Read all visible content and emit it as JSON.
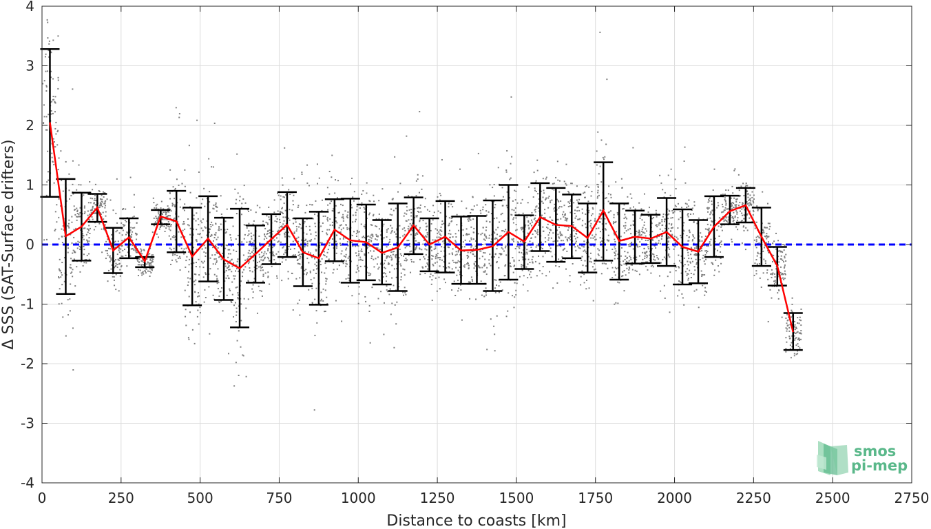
{
  "chart_data": {
    "type": "scatter",
    "xlabel": "Distance to coasts [km]",
    "ylabel": "Δ SSS (SAT-Surface drifters)",
    "xlim": [
      0,
      2750
    ],
    "ylim": [
      -4,
      4
    ],
    "x_ticks": [
      "0",
      "250",
      "500",
      "750",
      "1000",
      "1250",
      "1500",
      "1750",
      "2000",
      "2250",
      "2500",
      "2750"
    ],
    "y_ticks": [
      "4",
      "3",
      "2",
      "1",
      "0",
      "-1",
      "-2",
      "-3",
      "-4"
    ],
    "grid": true,
    "reference_line": {
      "y": 0,
      "style": "dashed",
      "color": "#0000ff"
    },
    "series": [
      {
        "style": "line-with-errorbars",
        "color": "#ff0000",
        "x": [
          25,
          75,
          125,
          175,
          225,
          275,
          325,
          375,
          425,
          475,
          525,
          575,
          625,
          675,
          725,
          775,
          825,
          875,
          925,
          975,
          1025,
          1075,
          1125,
          1175,
          1225,
          1275,
          1325,
          1375,
          1425,
          1475,
          1525,
          1575,
          1625,
          1675,
          1725,
          1775,
          1825,
          1875,
          1925,
          1975,
          2025,
          2075,
          2125,
          2175,
          2225,
          2275,
          2325,
          2375
        ],
        "y": [
          2.05,
          0.14,
          0.3,
          0.62,
          -0.1,
          0.12,
          -0.28,
          0.47,
          0.39,
          -0.2,
          0.1,
          -0.25,
          -0.4,
          -0.16,
          0.09,
          0.33,
          -0.13,
          -0.23,
          0.25,
          0.07,
          0.04,
          -0.14,
          -0.05,
          0.32,
          0.0,
          0.13,
          -0.1,
          -0.09,
          -0.03,
          0.21,
          0.05,
          0.46,
          0.33,
          0.31,
          0.11,
          0.57,
          0.06,
          0.13,
          0.1,
          0.21,
          -0.04,
          -0.12,
          0.3,
          0.56,
          0.66,
          0.13,
          -0.36,
          -1.47
        ],
        "err_low": [
          0.8,
          -0.83,
          -0.27,
          0.38,
          -0.48,
          -0.23,
          -0.38,
          0.34,
          -0.13,
          -1.02,
          -0.62,
          -0.93,
          -1.39,
          -0.64,
          -0.33,
          -0.21,
          -0.7,
          -1.01,
          -0.28,
          -0.64,
          -0.6,
          -0.67,
          -0.78,
          -0.16,
          -0.45,
          -0.47,
          -0.66,
          -0.66,
          -0.78,
          -0.59,
          -0.41,
          -0.11,
          -0.29,
          -0.23,
          -0.47,
          -0.27,
          -0.59,
          -0.32,
          -0.31,
          -0.36,
          -0.67,
          -0.65,
          -0.21,
          0.34,
          0.37,
          -0.36,
          -0.69,
          -1.77
        ],
        "err_high": [
          3.28,
          1.1,
          0.87,
          0.85,
          0.28,
          0.44,
          -0.21,
          0.58,
          0.9,
          0.62,
          0.81,
          0.45,
          0.6,
          0.32,
          0.51,
          0.88,
          0.44,
          0.55,
          0.76,
          0.77,
          0.67,
          0.41,
          0.69,
          0.79,
          0.44,
          0.73,
          0.47,
          0.48,
          0.74,
          1.0,
          0.49,
          1.03,
          0.95,
          0.84,
          0.69,
          1.38,
          0.69,
          0.57,
          0.5,
          0.78,
          0.59,
          0.41,
          0.81,
          0.82,
          0.95,
          0.62,
          -0.04,
          -1.15
        ]
      }
    ],
    "scatter_cloud_color": "#7f7f7f"
  },
  "logo": {
    "line1": "smos",
    "line2": "pi-mep"
  },
  "colors": {
    "mean_line": "#ff0000",
    "errorbar": "#000000",
    "zero_line": "#0000ff",
    "grid": "#dcdcdc",
    "logo_green": "#5ab88a"
  }
}
